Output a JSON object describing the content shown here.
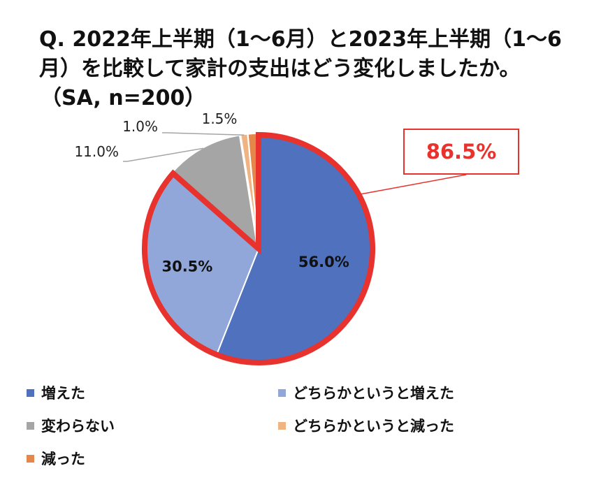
{
  "title_lines": [
    "Q. 2022年上半期（1〜6月）と2023年上半期（1〜6",
    "月）を比較して家計の支出はどう変化しましたか。",
    "（SA, n=200）"
  ],
  "colors": {
    "highlight": "#e8322d"
  },
  "callout": {
    "label": "86.5%"
  },
  "chart_data": {
    "type": "pie",
    "title": "Q. 2022年上半期（1〜6月）と2023年上半期（1〜6月）を比較して家計の支出はどう変化しましたか。（SA, n=200）",
    "legend_position": "bottom",
    "slices": [
      {
        "label": "増えた",
        "value": 56.0,
        "display": "56.0%",
        "color": "#4f71be"
      },
      {
        "label": "どちらかというと増えた",
        "value": 30.5,
        "display": "30.5%",
        "color": "#91a7d9"
      },
      {
        "label": "変わらない",
        "value": 11.0,
        "display": "11.0%",
        "color": "#a5a5a5"
      },
      {
        "label": "どちらかというと減った",
        "value": 1.0,
        "display": "1.0%",
        "color": "#f0b483"
      },
      {
        "label": "減った",
        "value": 1.5,
        "display": "1.5%",
        "color": "#e5874a"
      }
    ],
    "highlight": {
      "slices": [
        "増えた",
        "どちらかというと増えた"
      ],
      "total": "86.5%"
    }
  }
}
